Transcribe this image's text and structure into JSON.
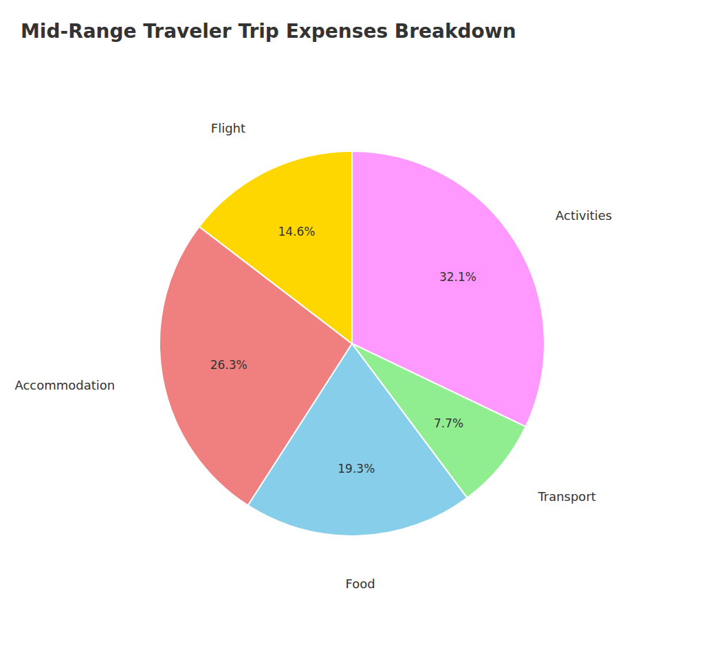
{
  "chart_data": {
    "type": "pie",
    "title": "Mid-Range Traveler Trip Expenses Breakdown",
    "categories": [
      "Activities",
      "Transport",
      "Food",
      "Accommodation",
      "Flight"
    ],
    "values": [
      32.1,
      7.7,
      19.3,
      26.3,
      14.6
    ],
    "value_labels": [
      "32.1%",
      "7.7%",
      "19.3%",
      "26.3%",
      "14.6%"
    ],
    "colors": [
      "#FF99FF",
      "#90EE90",
      "#87CEEB",
      "#F08080",
      "#FFD700"
    ],
    "data_labels": true
  }
}
